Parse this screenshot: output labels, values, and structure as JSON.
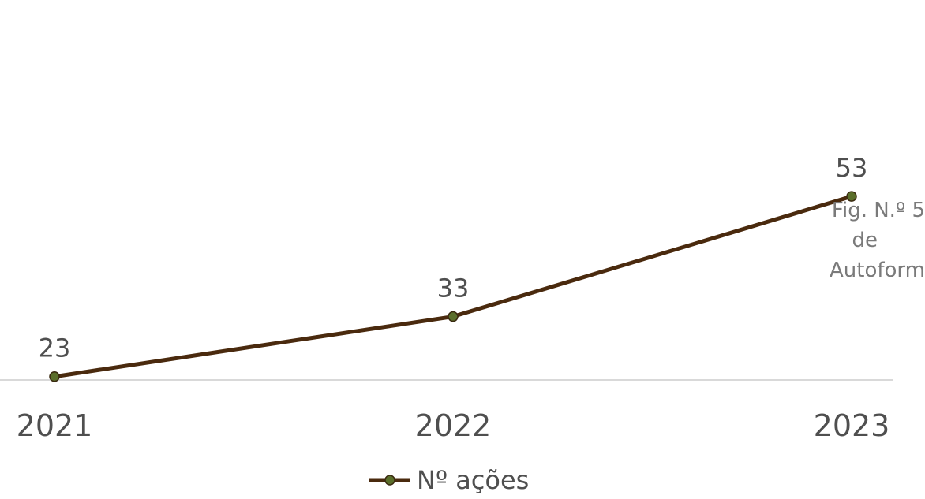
{
  "chart_data": {
    "type": "line",
    "categories": [
      "2021",
      "2022",
      "2023"
    ],
    "series": [
      {
        "name": "Nº ações",
        "values": [
          23,
          33,
          53
        ]
      }
    ],
    "data_labels": [
      "23",
      "33",
      "53"
    ],
    "ylim": [
      0,
      60
    ],
    "grid": false,
    "legend": "bottom",
    "colors": {
      "line": "#4a2a0e",
      "marker_fill": "#5a6e2a",
      "marker_stroke": "#3a2a10",
      "axis": "#d9d9d9",
      "text": "#4f4f4f"
    }
  },
  "caption": {
    "line1": "Fig. N.º 5",
    "line2": "de",
    "line3": "Autoform"
  }
}
